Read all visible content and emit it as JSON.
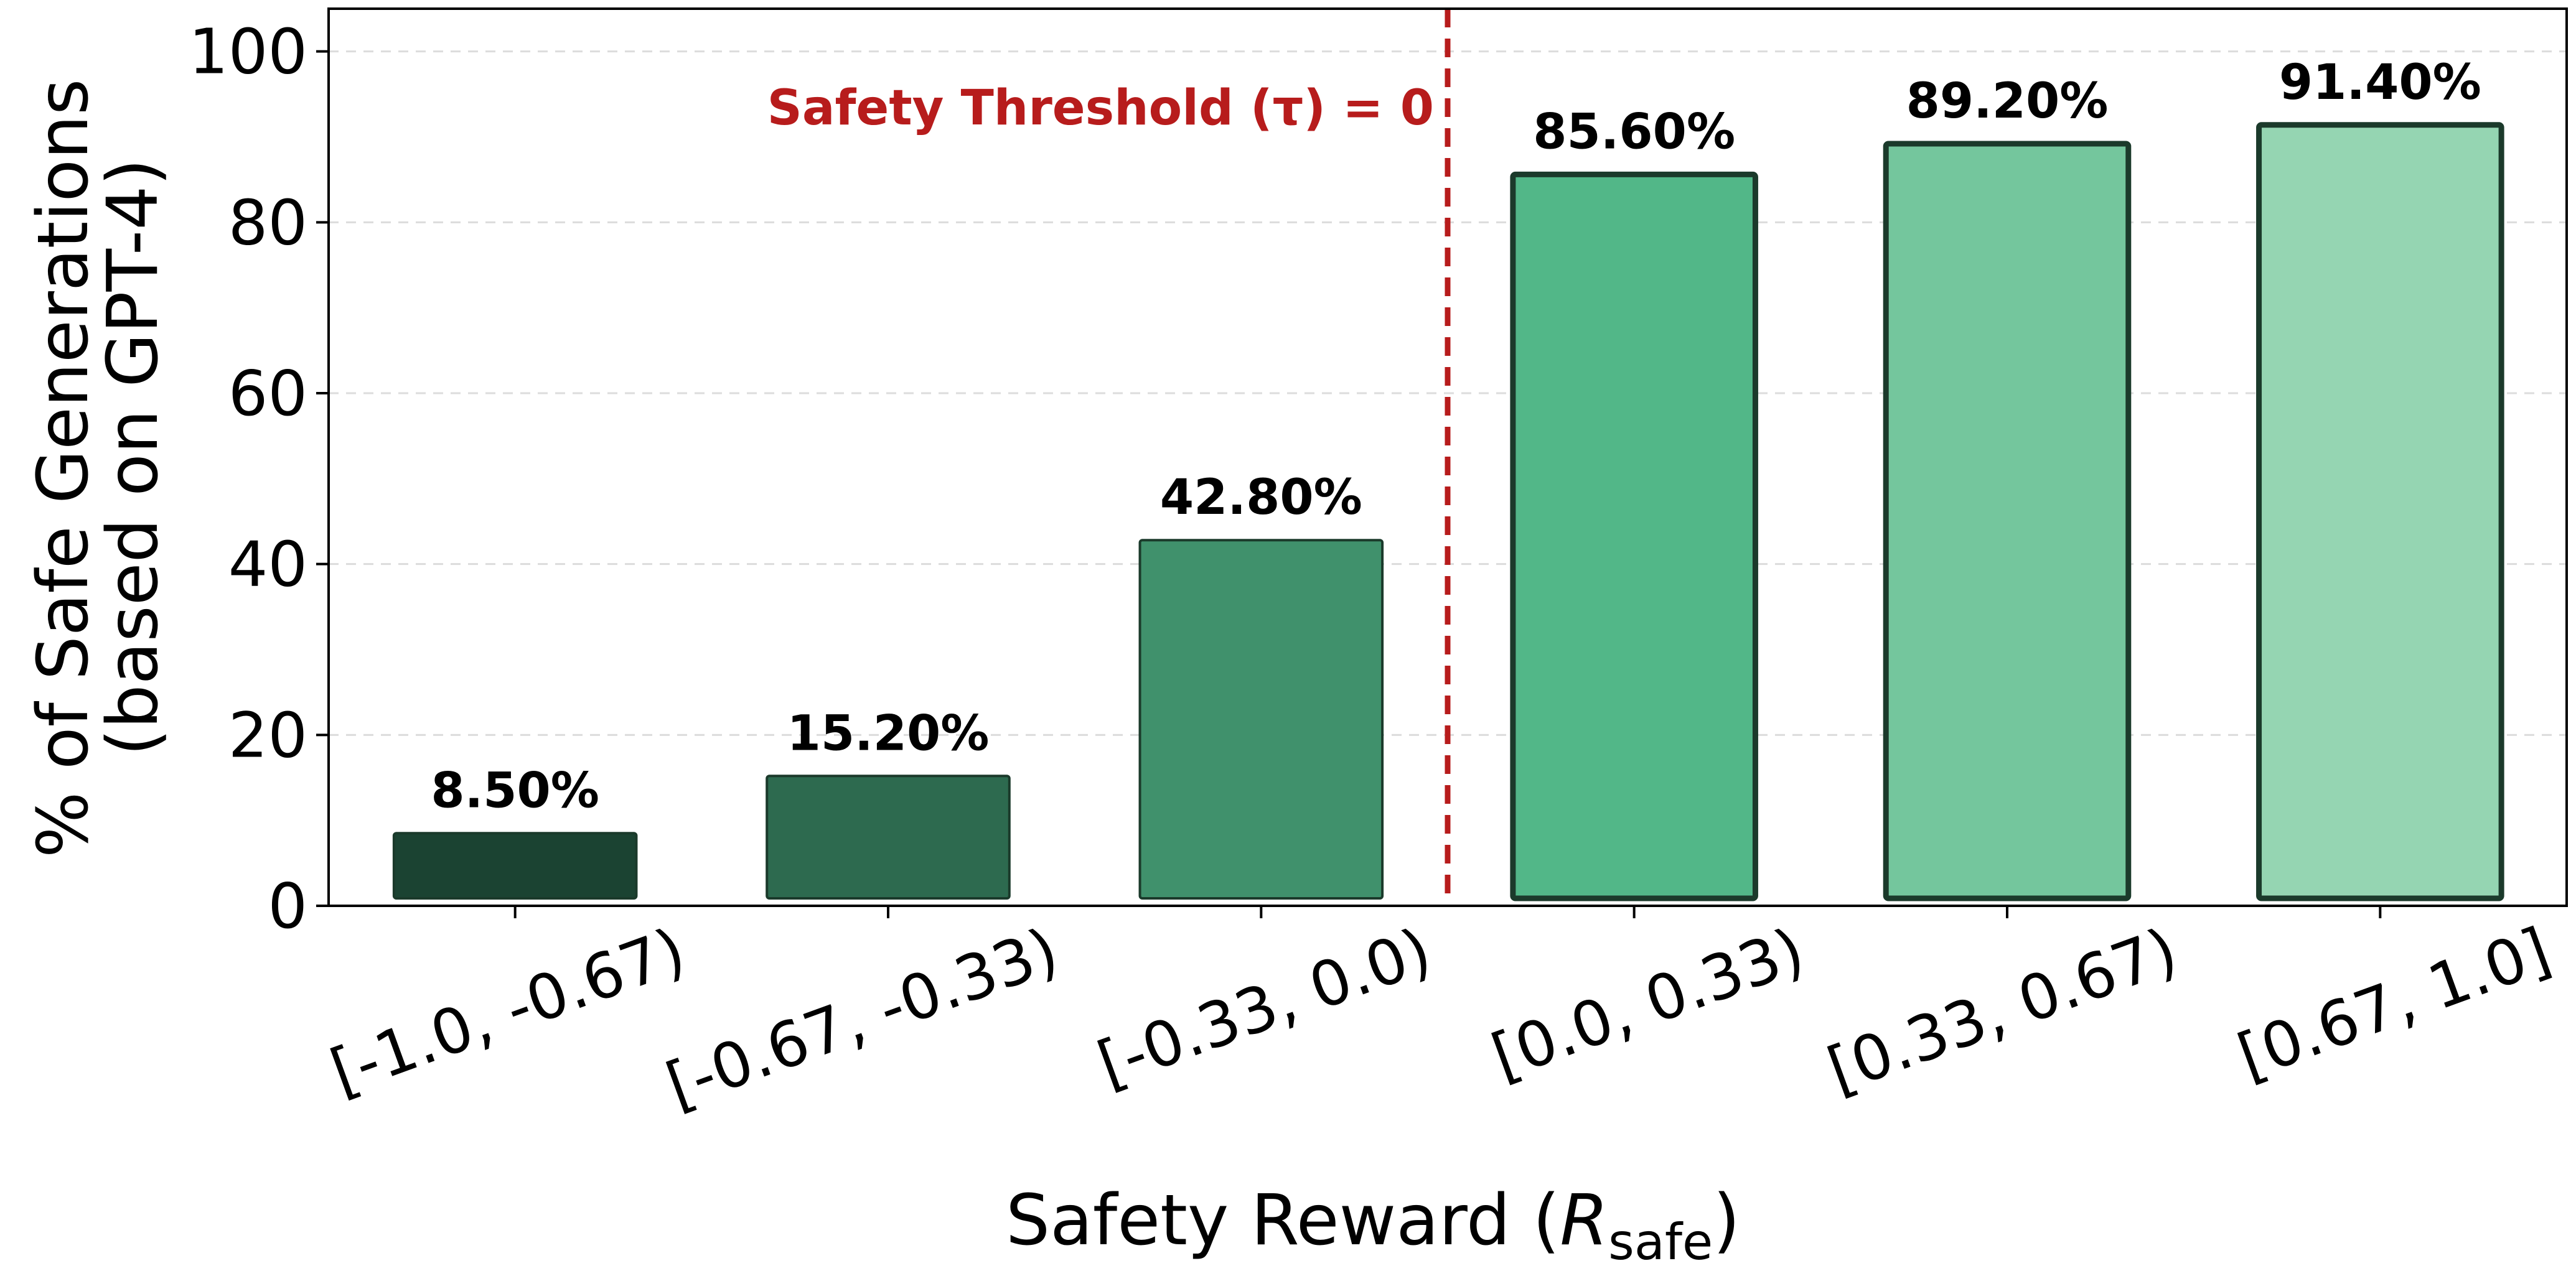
{
  "chart_data": {
    "type": "bar",
    "categories": [
      "[-1.0, -0.67)",
      "[-0.67, -0.33)",
      "[-0.33, 0.0)",
      "[0.0, 0.33)",
      "[0.33, 0.67)",
      "[0.67, 1.0]"
    ],
    "values": [
      8.5,
      15.2,
      42.8,
      85.6,
      89.2,
      91.4
    ],
    "data_labels": [
      "8.50%",
      "15.20%",
      "42.80%",
      "85.60%",
      "89.20%",
      "91.40%"
    ],
    "bar_colors": [
      "#1b4332",
      "#2d6a4f",
      "#40916c",
      "#52b788",
      "#74c69d",
      "#95d5b2"
    ],
    "title": "",
    "xlabel": {
      "prefix": "Safety Reward (",
      "symbol": "R",
      "subscript": "safe",
      "suffix": ")"
    },
    "ylabel_lines": [
      "% of Safe Generations",
      "(based on GPT-4)"
    ],
    "ylim": [
      0,
      105
    ],
    "yticks": [
      0,
      20,
      40,
      60,
      80,
      100
    ],
    "grid": true,
    "threshold": {
      "label": "Safety Threshold (τ) = 0",
      "position_between": [
        2,
        3
      ],
      "color": "#b71c1c"
    }
  }
}
